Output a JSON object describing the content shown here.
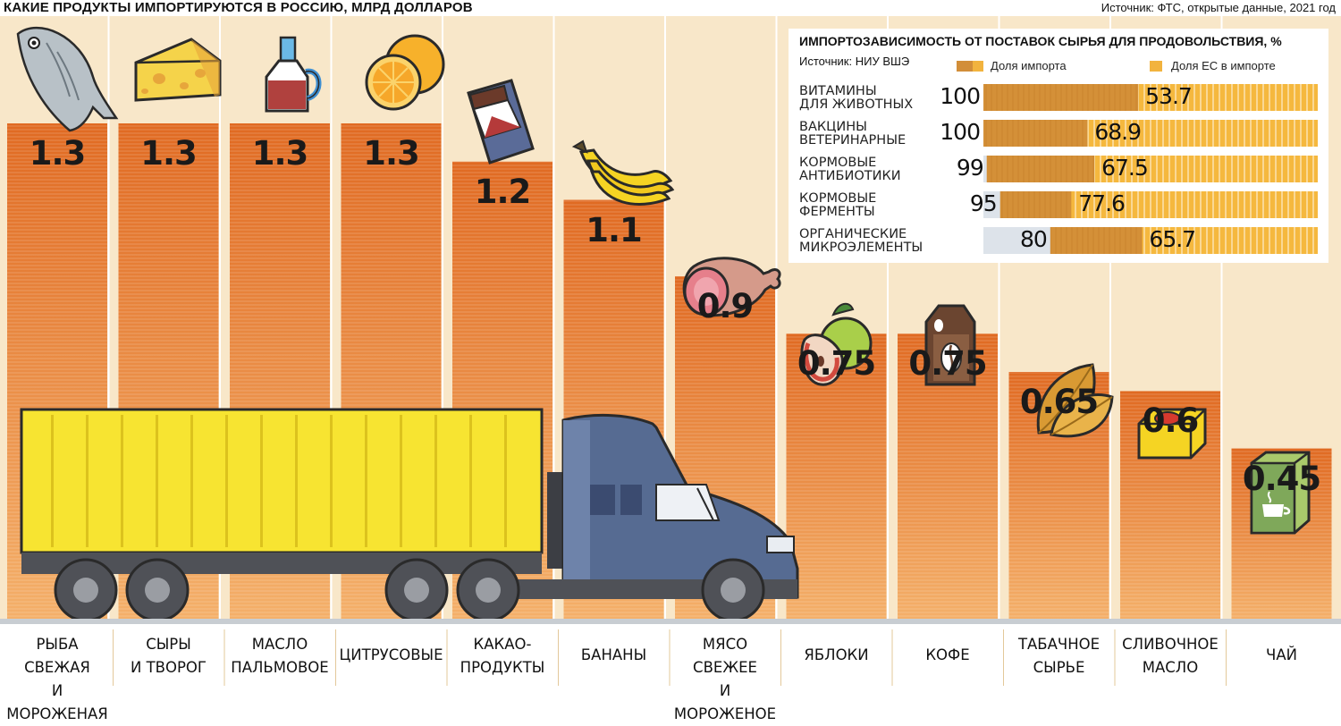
{
  "header": {
    "title": "КАКИЕ ПРОДУКТЫ ИМПОРТИРУЮТСЯ В РОССИЮ, МЛРД ДОЛЛАРОВ",
    "source": "Источник: ФТС, открытые данные, 2021 год"
  },
  "colors": {
    "bar_top": "#e0722a",
    "bar_bottom": "#f3a95e",
    "import_share": "#d28e39",
    "eu_share": "#f2b33e",
    "non_import": "#dde3ea",
    "trailer": "#f7e431",
    "cab": "#566b92"
  },
  "icons": [
    "fish-icon",
    "cheese-icon",
    "oil-bottle-icon",
    "orange-icon",
    "chocolate-icon",
    "banana-icon",
    "ham-icon",
    "apple-icon",
    "coffee-bag-icon",
    "tobacco-leaf-icon",
    "butter-icon",
    "tea-box-icon",
    "truck-icon"
  ],
  "chart_data": [
    {
      "type": "bar",
      "title": "КАКИЕ ПРОДУКТЫ ИМПОРТИРУЮТСЯ В РОССИЮ, МЛРД ДОЛЛАРОВ",
      "categories": [
        "РЫБА СВЕЖАЯ\nИ МОРОЖЕНАЯ",
        "СЫРЫ\nИ ТВОРОГ",
        "МАСЛО\nПАЛЬМОВОЕ",
        "ЦИТРУСОВЫЕ",
        "КАКАО-\nПРОДУКТЫ",
        "БАНАНЫ",
        "МЯСО СВЕЖЕЕ\nИ МОРОЖЕНОЕ",
        "ЯБЛОКИ",
        "КОФЕ",
        "ТАБАЧНОЕ\nСЫРЬЕ",
        "СЛИВОЧНОЕ\nМАСЛО",
        "ЧАЙ"
      ],
      "values": [
        1.3,
        1.3,
        1.3,
        1.3,
        1.2,
        1.1,
        0.9,
        0.75,
        0.75,
        0.65,
        0.6,
        0.45
      ],
      "value_labels": [
        "1.3",
        "1.3",
        "1.3",
        "1.3",
        "1.2",
        "1.1",
        "0.9",
        "0.75",
        "0.75",
        "0.65",
        "0.6",
        "0.45"
      ],
      "unit": "млрд долларов",
      "xlabel": "",
      "ylabel": "",
      "grid": false,
      "legend": "none"
    },
    {
      "type": "bar",
      "orientation": "horizontal",
      "title": "ИМПОРТОЗАВИСИМОСТЬ ОТ ПОСТАВОК СЫРЬЯ ДЛЯ ПРОДОВОЛЬСТВИЯ, %",
      "source": "Источник: НИУ ВШЭ",
      "categories": [
        "ВИТАМИНЫ\nДЛЯ ЖИВОТНЫХ",
        "ВАКЦИНЫ\nВЕТЕРИНАРНЫЕ",
        "КОРМОВЫЕ\nАНТИБИОТИКИ",
        "КОРМОВЫЕ\nФЕРМЕНТЫ",
        "ОРГАНИЧЕСКИЕ\nМИКРОЭЛЕМЕНТЫ"
      ],
      "series": [
        {
          "name": "Доля импорта",
          "values": [
            100,
            100,
            99,
            95,
            80
          ],
          "labels": [
            "100",
            "100",
            "99",
            "95",
            "80"
          ]
        },
        {
          "name": "Доля ЕС в импорте",
          "values": [
            53.7,
            68.9,
            67.5,
            77.6,
            65.7
          ],
          "labels": [
            "53.7",
            "68.9",
            "67.5",
            "77.6",
            "65.7"
          ]
        }
      ],
      "xlim": [
        0,
        100
      ],
      "legend": "top"
    }
  ]
}
